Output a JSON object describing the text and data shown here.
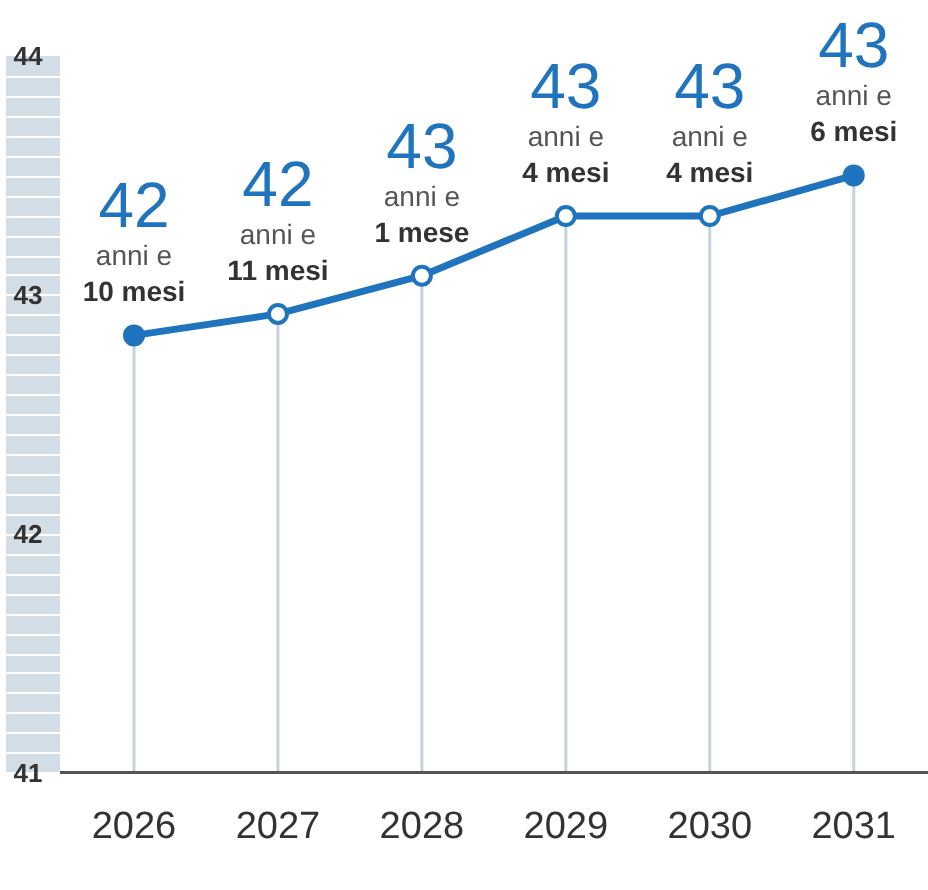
{
  "chart_data": {
    "type": "line",
    "categories": [
      "2026",
      "2027",
      "2028",
      "2029",
      "2030",
      "2031"
    ],
    "series": [
      {
        "color": "#1f74bd",
        "values": [
          42.83,
          42.92,
          43.08,
          43.33,
          43.33,
          43.5
        ]
      }
    ],
    "annotations": [
      {
        "text": "42\nanni e\n10 mesi",
        "x": "2026",
        "y": 42.83
      },
      {
        "text": "42\nanni e\n11 mesi",
        "x": "2027",
        "y": 42.92
      },
      {
        "text": "43\nanni e\n1 mese",
        "x": "2028",
        "y": 43.08
      },
      {
        "text": "43\nanni e\n4 mesi",
        "x": "2029",
        "y": 43.33
      },
      {
        "text": "43\nanni e\n4 mesi",
        "x": "2030",
        "y": 43.33
      },
      {
        "text": "43\nanni e\n6 mesi",
        "x": "2031",
        "y": 43.5
      }
    ],
    "ylim": [
      41,
      44
    ],
    "yticks": [
      41,
      42,
      43,
      44
    ],
    "marker": "circle",
    "line_style": "solid",
    "grid": "x",
    "legend": false
  }
}
